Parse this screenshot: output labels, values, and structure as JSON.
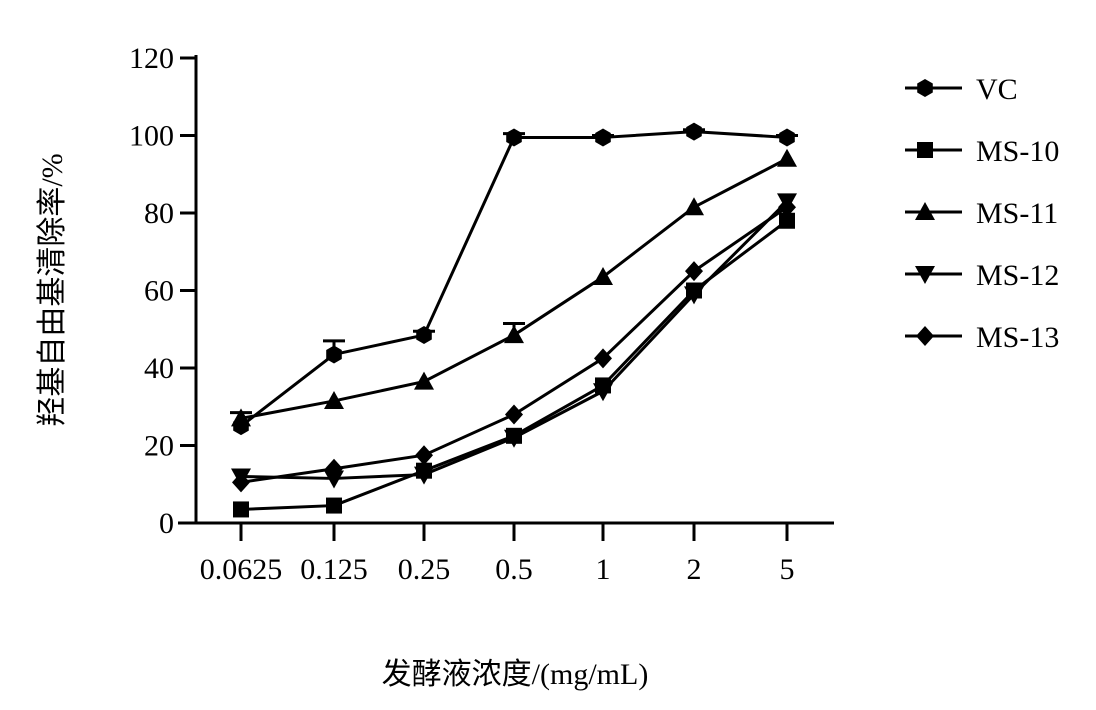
{
  "chart_data": {
    "type": "line",
    "title": "",
    "xlabel": "发酵液浓度/(mg/mL)",
    "ylabel": "羟基自由基清除率/%",
    "categories": [
      "0.0625",
      "0.125",
      "0.25",
      "0.5",
      "1",
      "2",
      "5"
    ],
    "ylim": [
      0,
      120
    ],
    "yticks": [
      "0",
      "20",
      "40",
      "60",
      "80",
      "100",
      "120"
    ],
    "grid": false,
    "legend_position": "right",
    "series": [
      {
        "name": "VC",
        "marker": "hexagon",
        "values": [
          25.0,
          43.5,
          48.5,
          99.5,
          99.5,
          101.0,
          99.5
        ],
        "errors": [
          3.5,
          3.5,
          1.0,
          1.0,
          0.5,
          0.5,
          0.5
        ]
      },
      {
        "name": "MS-10",
        "marker": "square",
        "values": [
          3.5,
          4.5,
          13.5,
          22.5,
          35.5,
          60.0,
          78.0
        ],
        "errors": [
          0,
          0,
          0,
          0,
          0,
          0,
          0
        ]
      },
      {
        "name": "MS-11",
        "marker": "triangle-up",
        "values": [
          27.0,
          31.5,
          36.5,
          48.5,
          63.5,
          81.5,
          94.0
        ],
        "errors": [
          0,
          0,
          0,
          3.0,
          0,
          0,
          0
        ]
      },
      {
        "name": "MS-12",
        "marker": "triangle-down",
        "values": [
          12.0,
          11.5,
          12.5,
          22.0,
          34.0,
          59.0,
          83.0
        ],
        "errors": [
          0,
          0,
          0,
          0,
          0,
          0,
          0
        ]
      },
      {
        "name": "MS-13",
        "marker": "diamond",
        "values": [
          10.5,
          14.0,
          17.5,
          28.0,
          42.5,
          65.0,
          81.5
        ],
        "errors": [
          0,
          0,
          0,
          0,
          0,
          0,
          0
        ]
      }
    ]
  }
}
